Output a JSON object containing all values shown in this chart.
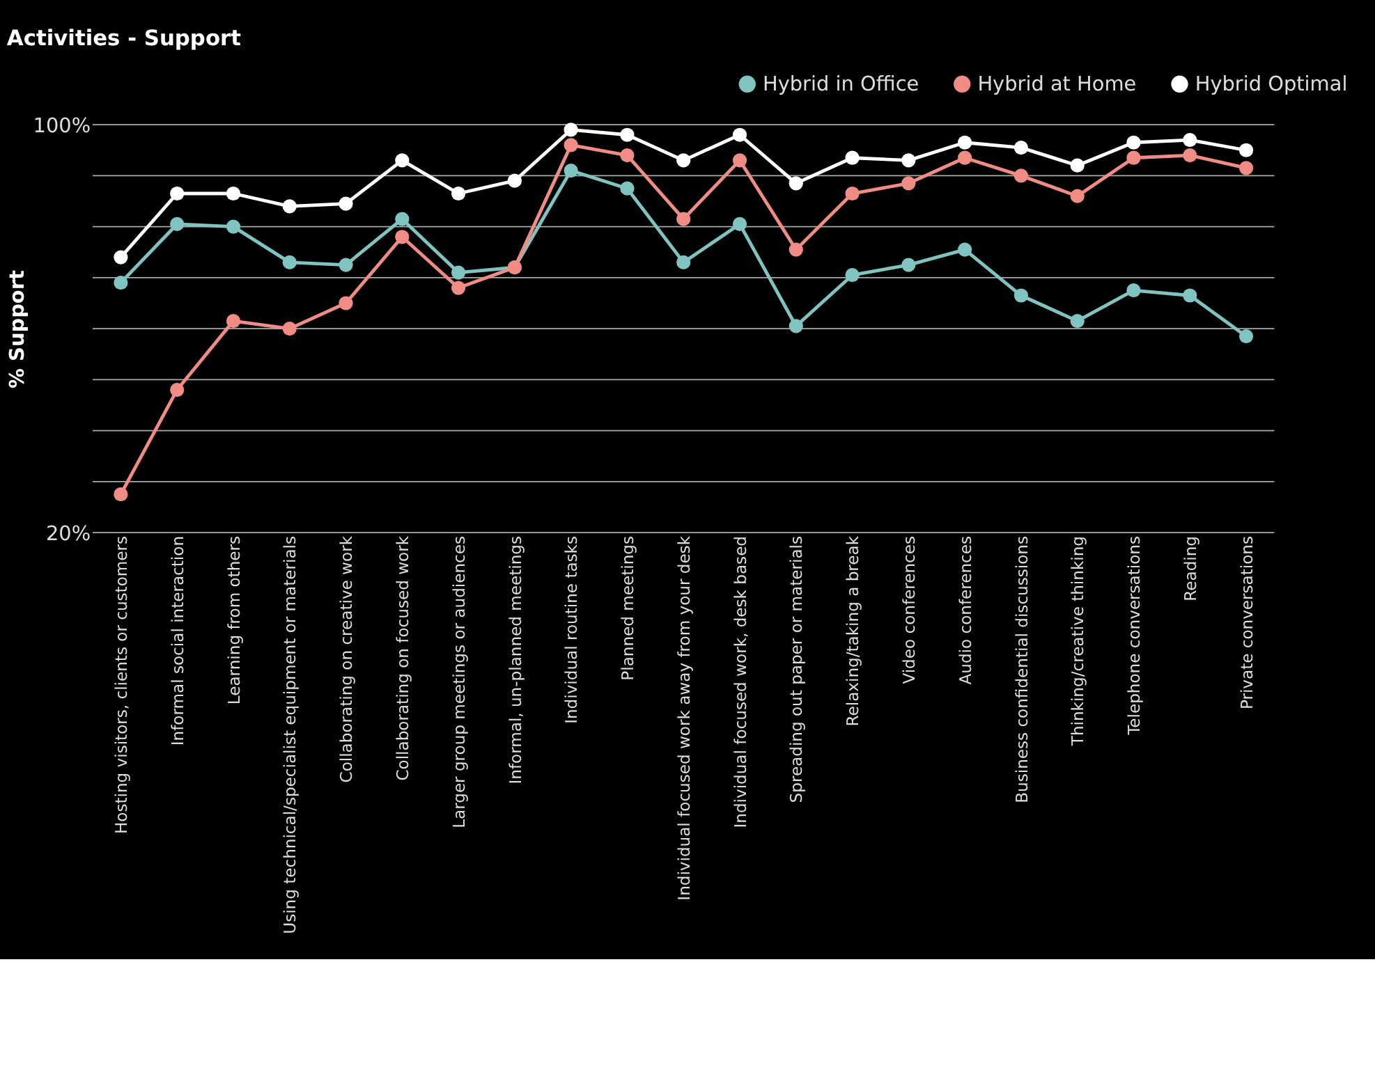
{
  "chart_data": {
    "type": "line",
    "title": "Activities - Support",
    "ylabel": "% Support",
    "categories": [
      "Hosting visitors, clients or customers",
      "Informal social interaction",
      "Learning from others",
      "Using technical/specialist equipment or materials",
      "Collaborating on creative work",
      "Collaborating on focused work",
      "Larger group meetings or audiences",
      "Informal, un-planned meetings",
      "Individual routine tasks",
      "Planned meetings",
      "Individual focused work away from your desk",
      "Individual focused work, desk based",
      "Spreading out paper or materials",
      "Relaxing/taking a break",
      "Video conferences",
      "Audio conferences",
      "Business confidential discussions",
      "Thinking/creative thinking",
      "Telephone conversations",
      "Reading",
      "Private conversations"
    ],
    "series": [
      {
        "name": "Hybrid in Office",
        "color": "#7fc4c0",
        "values": [
          69,
          80.5,
          80,
          73,
          72.5,
          81.5,
          71,
          72,
          91,
          87.5,
          73,
          80.5,
          60.5,
          70.5,
          72.5,
          75.5,
          66.5,
          61.5,
          67.5,
          66.5,
          58.5
        ]
      },
      {
        "name": "Hybrid at Home",
        "color": "#f08c84",
        "values": [
          27.5,
          48,
          61.5,
          60,
          65,
          78,
          68,
          72,
          96,
          94,
          81.5,
          93,
          75.5,
          86.5,
          88.5,
          93.5,
          90,
          86,
          93.5,
          94,
          91.5
        ]
      },
      {
        "name": "Hybrid Optimal",
        "color": "#ffffff",
        "values": [
          74,
          86.5,
          86.5,
          84,
          84.5,
          93,
          86.5,
          89,
          99,
          98,
          93,
          98,
          88.5,
          93.5,
          93,
          96.5,
          95.5,
          92,
          96.5,
          97,
          95
        ]
      }
    ],
    "ylim": [
      20,
      100
    ],
    "yticks": [
      {
        "value": 20,
        "label": "20%"
      },
      {
        "value": 30,
        "label": null
      },
      {
        "value": 40,
        "label": null
      },
      {
        "value": 50,
        "label": null
      },
      {
        "value": 60,
        "label": null
      },
      {
        "value": 70,
        "label": null
      },
      {
        "value": 80,
        "label": null
      },
      {
        "value": 90,
        "label": null
      },
      {
        "value": 100,
        "label": "100%"
      }
    ],
    "grid": "y",
    "legend": "top right",
    "marker": "circle",
    "line_style": "solid"
  }
}
